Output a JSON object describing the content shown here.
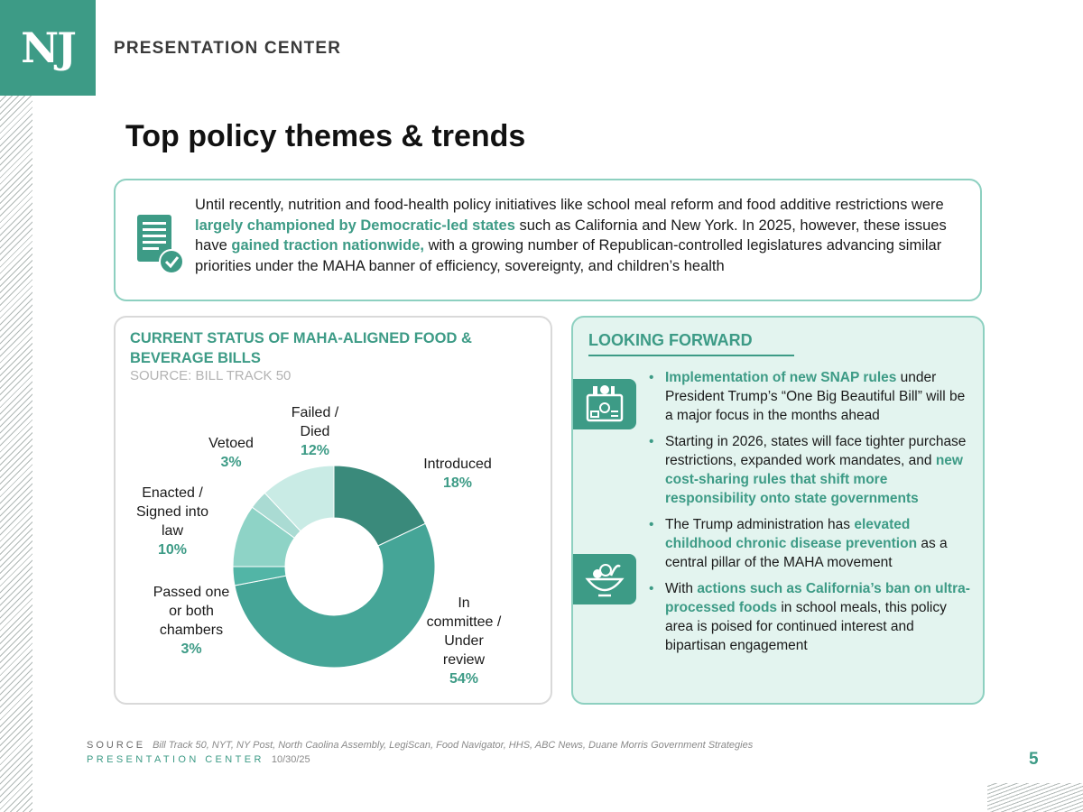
{
  "header": {
    "logo_text": "NJ",
    "brand": "PRESENTATION CENTER",
    "title": "Top policy themes & trends"
  },
  "intro": {
    "t1": "Until recently, nutrition and food-health policy initiatives like school meal reform and food additive restrictions were ",
    "h1": "largely championed by Democratic-led states",
    "t2": " such as California and New York. In 2025, however, these issues have ",
    "h2": "gained traction nationwide,",
    "t3": " with a growing number of Republican-controlled legislatures advancing similar priorities under the MAHA banner of efficiency, sovereignty, and children’s health"
  },
  "chart_panel": {
    "title": "CURRENT STATUS OF MAHA-ALIGNED FOOD & BEVERAGE BILLS",
    "source": "SOURCE: BILL TRACK 50"
  },
  "chart_data": {
    "type": "pie",
    "variant": "donut",
    "categories": [
      "Introduced",
      "In committee / Under review",
      "Passed one or both chambers",
      "Enacted / Signed into law",
      "Vetoed",
      "Failed / Died"
    ],
    "values": [
      18,
      54,
      3,
      10,
      3,
      12
    ],
    "value_labels": [
      "18%",
      "54%",
      "3%",
      "10%",
      "3%",
      "12%"
    ],
    "colors": [
      "#3a8a7b",
      "#45a597",
      "#52b5a6",
      "#8ed3c6",
      "#aadbd3",
      "#c9ebe5"
    ],
    "label_lines": [
      [
        "Introduced"
      ],
      [
        "In",
        "committee /",
        "Under",
        "review"
      ],
      [
        "Passed one",
        "or both",
        "chambers"
      ],
      [
        "Enacted /",
        "Signed into",
        "law"
      ],
      [
        "Vetoed"
      ],
      [
        "Failed /",
        "Died"
      ]
    ]
  },
  "looking_forward": {
    "title": "LOOKING FORWARD",
    "icons": [
      "grocery-box-icon",
      "food-bowl-icon"
    ],
    "bullets": [
      {
        "a": "Implementation of new SNAP rules",
        "b": " under President Trump’s “One Big Beautiful Bill” will be a major focus in the months ahead",
        "c": "",
        "d": ""
      },
      {
        "a": "",
        "b": "Starting in 2026, states will face tighter purchase restrictions, expanded work mandates, and ",
        "c": "new cost-sharing rules that shift more responsibility onto state governments",
        "d": ""
      },
      {
        "a": "",
        "b": "The Trump administration has ",
        "c": "elevated childhood chronic disease prevention",
        "d": " as a central pillar of the MAHA movement"
      },
      {
        "a": "",
        "b": "With ",
        "c": "actions such as California’s ban on ultra-processed foods",
        "d": " in school meals, this policy area is poised for continued interest and bipartisan engagement"
      }
    ]
  },
  "footer": {
    "source_key": "SOURCE",
    "source_value": "Bill Track 50, NYT, NY Post, North Caolina Assembly, LegiScan, Food Navigator, HHS, ABC News, Duane Morris Government Strategies",
    "pc_key": "PRESENTATION CENTER",
    "date": "10/30/25",
    "page_number": "5"
  }
}
